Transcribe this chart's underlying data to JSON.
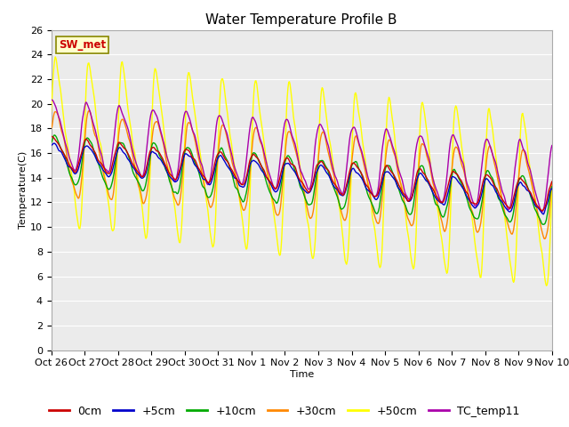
{
  "title": "Water Temperature Profile B",
  "xlabel": "Time",
  "ylabel": "Temperature(C)",
  "ylim": [
    0,
    26
  ],
  "yticks": [
    0,
    2,
    4,
    6,
    8,
    10,
    12,
    14,
    16,
    18,
    20,
    22,
    24,
    26
  ],
  "xtick_labels": [
    "Oct 26",
    "Oct 27",
    "Oct 28",
    "Oct 29",
    "Oct 30",
    "Oct 31",
    "Nov 1",
    "Nov 2",
    "Nov 3",
    "Nov 4",
    "Nov 5",
    "Nov 6",
    "Nov 7",
    "Nov 8",
    "Nov 9",
    "Nov 10"
  ],
  "series_colors": {
    "0cm": "#cc0000",
    "+5cm": "#0000cc",
    "+10cm": "#00aa00",
    "+30cm": "#ff8800",
    "+50cm": "#ffff00",
    "TC_temp11": "#aa00aa"
  },
  "annotation_text": "SW_met",
  "annotation_color": "#cc0000",
  "annotation_bg": "#ffffcc",
  "annotation_edge": "#888800",
  "plot_bg": "#ebebeb",
  "title_fontsize": 11,
  "axis_fontsize": 8,
  "legend_fontsize": 9
}
